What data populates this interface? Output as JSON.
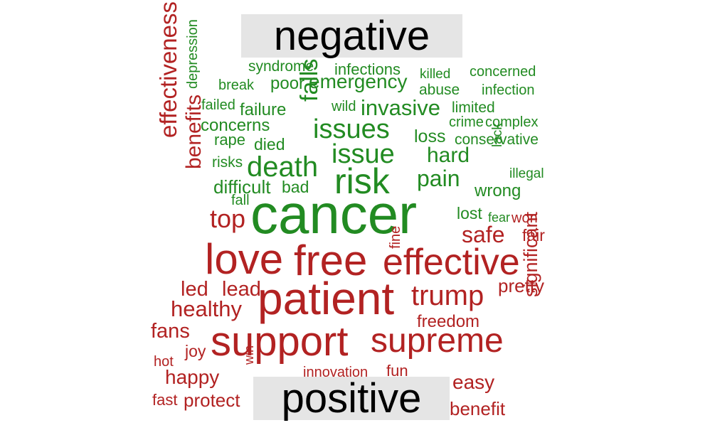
{
  "chart_data": {
    "type": "comparison_wordcloud",
    "groups": [
      {
        "name": "negative",
        "color": "#228b22",
        "words": [
          "cancer",
          "risk",
          "issues",
          "issue",
          "death",
          "falls",
          "invasive",
          "emergency",
          "pain",
          "hard",
          "infections",
          "syndrome",
          "concerned",
          "killed",
          "abuse",
          "infection",
          "break",
          "poor",
          "failed",
          "failure",
          "wild",
          "limited",
          "concerns",
          "crime",
          "complex",
          "rape",
          "died",
          "loss",
          "conservative",
          "depression",
          "risks",
          "difficult",
          "bad",
          "illegal",
          "lack",
          "wrong",
          "fall",
          "lost",
          "fear"
        ]
      },
      {
        "name": "positive",
        "color": "#b22222",
        "words": [
          "patient",
          "support",
          "love",
          "free",
          "effective",
          "supreme",
          "trump",
          "top",
          "safe",
          "effectiveness",
          "benefits",
          "healthy",
          "pretty",
          "led",
          "lead",
          "fans",
          "freedom",
          "significant",
          "won",
          "fair",
          "fine",
          "joy",
          "happy",
          "hot",
          "win",
          "innovation",
          "fun",
          "easy",
          "fast",
          "protect",
          "benefit"
        ]
      }
    ]
  }
}
